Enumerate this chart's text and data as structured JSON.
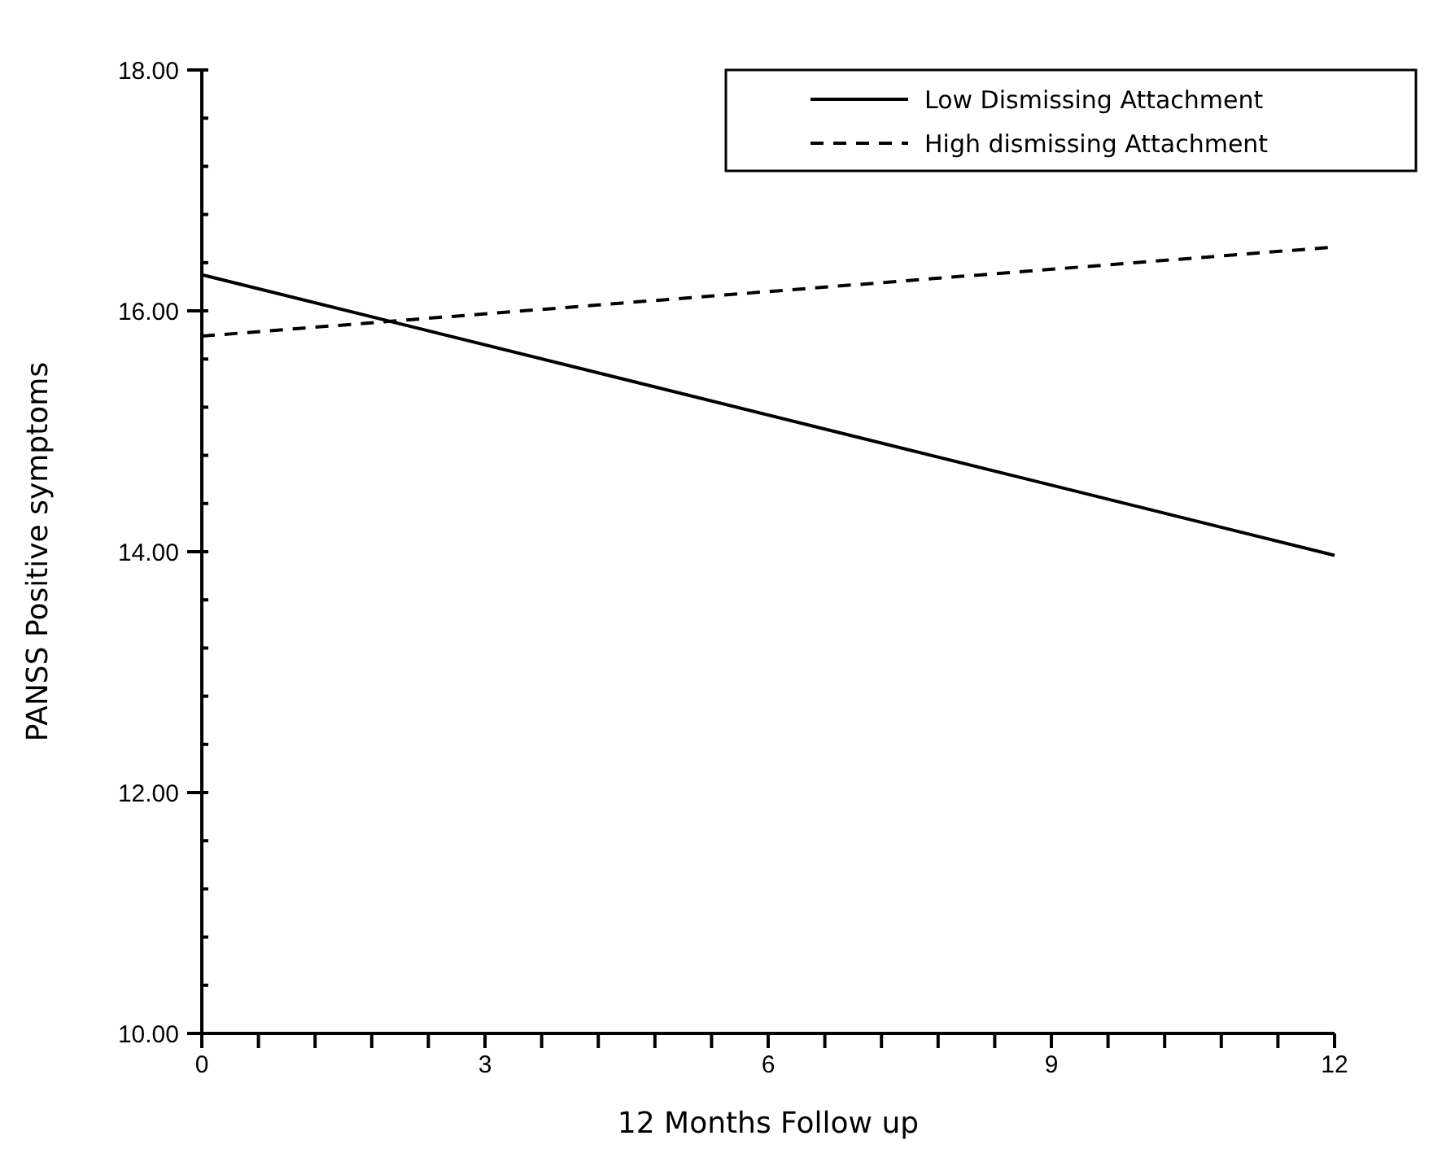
{
  "chart_data": {
    "type": "line",
    "xlabel": "12 Months Follow up",
    "ylabel": "PANSS Positive symptoms",
    "x": [
      0,
      12
    ],
    "series": [
      {
        "name": "Low Dismissing Attachment",
        "color": "#000000",
        "values": [
          16.3,
          13.97
        ],
        "line_style": "solid"
      },
      {
        "name": "High dismissing Attachment",
        "color": "#000000",
        "values": [
          15.79,
          16.53
        ],
        "line_style": "dashed"
      }
    ],
    "xlim": [
      0,
      12
    ],
    "xticks": [
      0,
      {
        "value": 0.6,
        "label": null
      },
      {
        "value": 1.2,
        "label": null
      },
      {
        "value": 1.8,
        "label": null
      },
      {
        "value": 2.4,
        "label": null
      },
      3,
      {
        "value": 3.6,
        "label": null
      },
      {
        "value": 4.2,
        "label": null
      },
      {
        "value": 4.8,
        "label": null
      },
      {
        "value": 5.4,
        "label": null
      },
      6,
      {
        "value": 6.6,
        "label": null
      },
      {
        "value": 7.2,
        "label": null
      },
      {
        "value": 7.8,
        "label": null
      },
      {
        "value": 8.4,
        "label": null
      },
      9,
      {
        "value": 9.6,
        "label": null
      },
      {
        "value": 10.2,
        "label": null
      },
      {
        "value": 10.8,
        "label": null
      },
      {
        "value": 11.4,
        "label": null
      },
      12
    ],
    "ylim": [
      10,
      18
    ],
    "yticks": [
      {
        "value": 10,
        "label": "10.00"
      },
      {
        "value": 10.4,
        "label": null
      },
      {
        "value": 10.8,
        "label": null
      },
      {
        "value": 11.2,
        "label": null
      },
      {
        "value": 11.6,
        "label": null
      },
      {
        "value": 12,
        "label": "12.00"
      },
      {
        "value": 12.4,
        "label": null
      },
      {
        "value": 12.8,
        "label": null
      },
      {
        "value": 13.2,
        "label": null
      },
      {
        "value": 13.6,
        "label": null
      },
      {
        "value": 14,
        "label": "14.00"
      },
      {
        "value": 14.4,
        "label": null
      },
      {
        "value": 14.8,
        "label": null
      },
      {
        "value": 15.2,
        "label": null
      },
      {
        "value": 15.6,
        "label": null
      },
      {
        "value": 16,
        "label": "16.00"
      },
      {
        "value": 16.4,
        "label": null
      },
      {
        "value": 16.8,
        "label": null
      },
      {
        "value": 17.2,
        "label": null
      },
      {
        "value": 17.6,
        "label": null
      },
      {
        "value": 18,
        "label": "18.00"
      }
    ],
    "grid": false,
    "legend": "top right",
    "marker": "none"
  }
}
